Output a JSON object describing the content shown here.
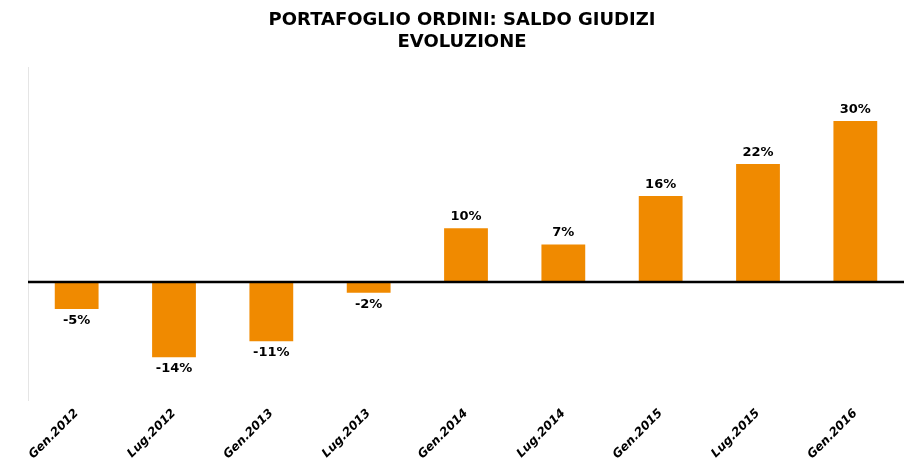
{
  "chart_data": {
    "type": "bar",
    "title": "PORTAFOGLIO ORDINI: SALDO GIUDIZI\nEVOLUZIONE",
    "categories": [
      "Gen.2012",
      "Lug.2012",
      "Gen.2013",
      "Lug.2013",
      "Gen.2014",
      "Lug.2014",
      "Gen.2015",
      "Lug.2015",
      "Gen.2016"
    ],
    "values": [
      -5,
      -14,
      -11,
      -2,
      10,
      7,
      16,
      22,
      30
    ],
    "value_labels": [
      "-5%",
      "-14%",
      "-11%",
      "-2%",
      "10%",
      "7%",
      "16%",
      "22%",
      "30%"
    ],
    "color": "#F08A00",
    "ylim": [
      -22,
      40
    ],
    "grid": false,
    "data_labels": true,
    "tick_labels": "x"
  }
}
